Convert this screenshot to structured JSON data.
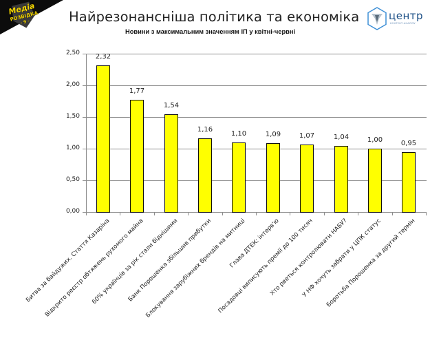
{
  "header": {
    "title": "Найрезонансніша політика та економіка",
    "subtitle": "Новини з максимальним значенням ІП у квітні-червні",
    "logo_left": {
      "line1": "Медіа",
      "line2": "РОЗВІДКА",
      "line3": "- 9 -",
      "icon": "media-rozvidka-logo"
    },
    "logo_right": {
      "word": "центр",
      "tagline": "КОНТЕНТ-АНАЛІЗУ",
      "icon": "centr-hexagon-logo"
    }
  },
  "chart_data": {
    "type": "bar",
    "title": "Найрезонансніша політика та економіка",
    "subtitle": "Новини з максимальним значенням ІП у квітні-червні",
    "xlabel": "",
    "ylabel": "",
    "ylim": [
      0,
      2.5
    ],
    "yticks": [
      "0,00",
      "0,50",
      "1,00",
      "1,50",
      "2,00",
      "2,50"
    ],
    "grid": true,
    "legend": "none",
    "bar_color": "#ffff00",
    "bar_border_color": "#111111",
    "categories": [
      "Битва за байдужих. Стаття Казаріна",
      "Відкрито  реєстр обтяжень рухомого майна",
      "60% українців  за рік стали біднішими",
      "Банк Порошенка збільшив прибутки",
      "Блокування  зарубіжних брендів на митниці",
      "Глава ДТЕК: інтерв'ю",
      "Посадовці виписують  премії до 100 тисяч",
      "Хто рветься контролювати НАБУ?",
      "У НФ хочуть  забрати у ЦПК статус",
      "Боротьба Порошенка за другий  термін"
    ],
    "values": [
      2.32,
      1.77,
      1.54,
      1.16,
      1.1,
      1.09,
      1.07,
      1.04,
      1.0,
      0.95
    ],
    "value_labels": [
      "2,32",
      "1,77",
      "1,54",
      "1,16",
      "1,10",
      "1,09",
      "1,07",
      "1,04",
      "1,00",
      "0,95"
    ]
  }
}
